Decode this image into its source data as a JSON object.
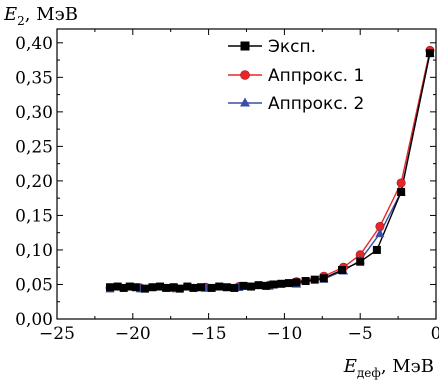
{
  "chart_data": {
    "type": "line",
    "y_axis_label": {
      "main": "E",
      "sub": "2",
      "unit": ", МэВ"
    },
    "x_axis_label": {
      "main": "E",
      "sub": "деф",
      "unit": ", МэВ"
    },
    "xlim": [
      -25,
      0
    ],
    "ylim": [
      0.0,
      0.42
    ],
    "x_ticks": [
      -25,
      -20,
      -15,
      -10,
      -5,
      0
    ],
    "x_tick_labels": [
      "−25",
      "−20",
      "−15",
      "−10",
      "−5",
      "0"
    ],
    "y_ticks": [
      0.0,
      0.05,
      0.1,
      0.15,
      0.2,
      0.25,
      0.3,
      0.35,
      0.4
    ],
    "y_tick_labels": [
      "0,00",
      "0,05",
      "0,10",
      "0,15",
      "0,20",
      "0,25",
      "0,30",
      "0,35",
      "0,40"
    ],
    "grid": false,
    "legend_position": "top-right",
    "series": [
      {
        "name": "Эксп.",
        "color": "#000000",
        "marker": "square",
        "x": [
          -21.5,
          -21.0,
          -20.6,
          -20.2,
          -19.8,
          -19.2,
          -18.7,
          -18.2,
          -17.8,
          -17.3,
          -16.9,
          -16.4,
          -16.0,
          -15.5,
          -14.8,
          -14.3,
          -13.8,
          -13.3,
          -12.7,
          -12.2,
          -11.7,
          -11.2,
          -10.7,
          -10.2,
          -9.7,
          -9.2,
          -8.6,
          -8.0,
          -7.4,
          -6.2,
          -5.0,
          -3.9,
          -2.3,
          -0.4
        ],
        "y": [
          0.046,
          0.047,
          0.045,
          0.047,
          0.046,
          0.044,
          0.046,
          0.047,
          0.045,
          0.046,
          0.044,
          0.047,
          0.045,
          0.046,
          0.045,
          0.047,
          0.046,
          0.045,
          0.048,
          0.047,
          0.049,
          0.048,
          0.05,
          0.051,
          0.052,
          0.053,
          0.055,
          0.057,
          0.059,
          0.071,
          0.083,
          0.1,
          0.184,
          0.385
        ]
      },
      {
        "name": "Аппрокс. 1",
        "color": "#e8262a",
        "marker": "circle",
        "x": [
          -21.5,
          -19.5,
          -17.3,
          -15.2,
          -13.0,
          -11.0,
          -9.2,
          -7.4,
          -6.1,
          -5.0,
          -3.7,
          -2.3,
          -0.4
        ],
        "y": [
          0.045,
          0.045,
          0.045,
          0.046,
          0.047,
          0.049,
          0.054,
          0.062,
          0.075,
          0.093,
          0.134,
          0.197,
          0.389
        ]
      },
      {
        "name": "Аппрокс. 2",
        "color": "#3a4fa8",
        "marker": "triangle",
        "x": [
          -21.5,
          -19.5,
          -17.3,
          -15.2,
          -13.0,
          -11.0,
          -9.2,
          -7.4,
          -6.1,
          -5.0,
          -3.7,
          -2.3,
          -0.4
        ],
        "y": [
          0.044,
          0.044,
          0.045,
          0.045,
          0.046,
          0.048,
          0.051,
          0.058,
          0.07,
          0.085,
          0.124,
          0.184,
          0.385
        ]
      }
    ]
  }
}
